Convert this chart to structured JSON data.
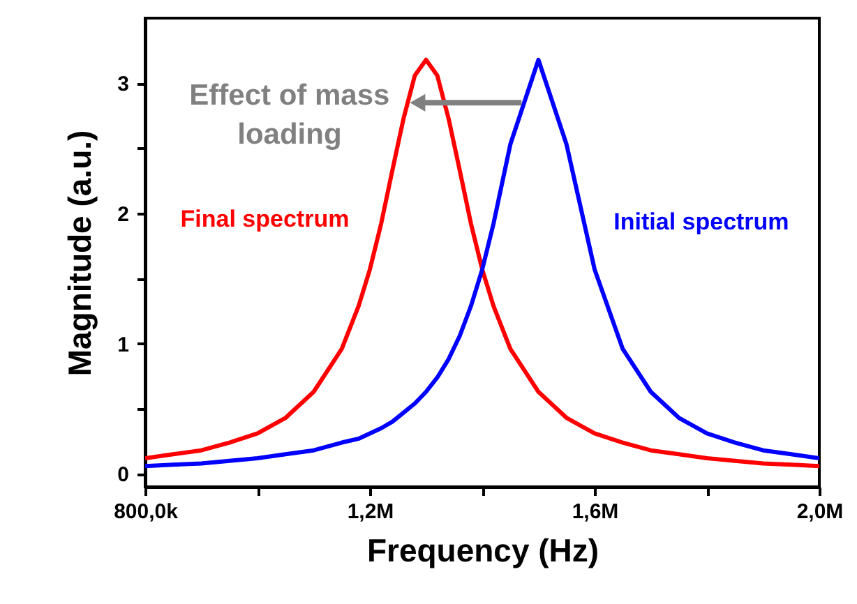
{
  "chart_data": {
    "type": "line",
    "xlabel": "Frequency (Hz)",
    "ylabel": "Magnitude (a.u.)",
    "annotations": [
      "Effect of mass loading"
    ],
    "x": [
      800000,
      850000,
      900000,
      950000,
      1000000,
      1050000,
      1100000,
      1150000,
      1180000,
      1200000,
      1220000,
      1240000,
      1260000,
      1280000,
      1300000,
      1320000,
      1340000,
      1360000,
      1380000,
      1400000,
      1420000,
      1450000,
      1500000,
      1550000,
      1600000,
      1650000,
      1700000,
      1750000,
      1800000,
      1850000,
      1900000,
      1950000,
      2000000
    ],
    "series": [
      {
        "name": "Final spectrum",
        "color": "#ff0000",
        "values": [
          0.12,
          0.15,
          0.18,
          0.24,
          0.31,
          0.43,
          0.63,
          0.96,
          1.29,
          1.57,
          1.92,
          2.33,
          2.73,
          3.06,
          3.18,
          3.06,
          2.73,
          2.33,
          1.92,
          1.57,
          1.29,
          0.96,
          0.63,
          0.43,
          0.31,
          0.24,
          0.18,
          0.15,
          0.12,
          0.1,
          0.08,
          0.07,
          0.06
        ]
      },
      {
        "name": "Initial spectrum",
        "color": "#0000ff",
        "values": [
          0.06,
          0.07,
          0.08,
          0.1,
          0.12,
          0.15,
          0.18,
          0.24,
          0.27,
          0.31,
          0.35,
          0.4,
          0.47,
          0.54,
          0.63,
          0.74,
          0.88,
          1.06,
          1.29,
          1.57,
          1.92,
          2.53,
          3.18,
          2.53,
          1.57,
          0.96,
          0.63,
          0.43,
          0.31,
          0.24,
          0.18,
          0.15,
          0.12
        ]
      }
    ],
    "xlim": [
      800000,
      2000000
    ],
    "xticks": [
      {
        "value": 800000,
        "label": "800,0k"
      },
      {
        "value": 1000000,
        "label": null
      },
      {
        "value": 1200000,
        "label": "1,2M"
      },
      {
        "value": 1400000,
        "label": null
      },
      {
        "value": 1600000,
        "label": "1,6M"
      },
      {
        "value": 1800000,
        "label": null
      },
      {
        "value": 2000000,
        "label": "2,0M"
      }
    ],
    "ylim": [
      -0.1,
      3.5
    ],
    "yticks": [
      0,
      {
        "value": 0.5,
        "label": null
      },
      1,
      {
        "value": 1.5,
        "label": null
      },
      2,
      {
        "value": 2.5,
        "label": null
      },
      3
    ],
    "grid": false,
    "legend": false,
    "marker": "none",
    "line_style": "solid"
  }
}
